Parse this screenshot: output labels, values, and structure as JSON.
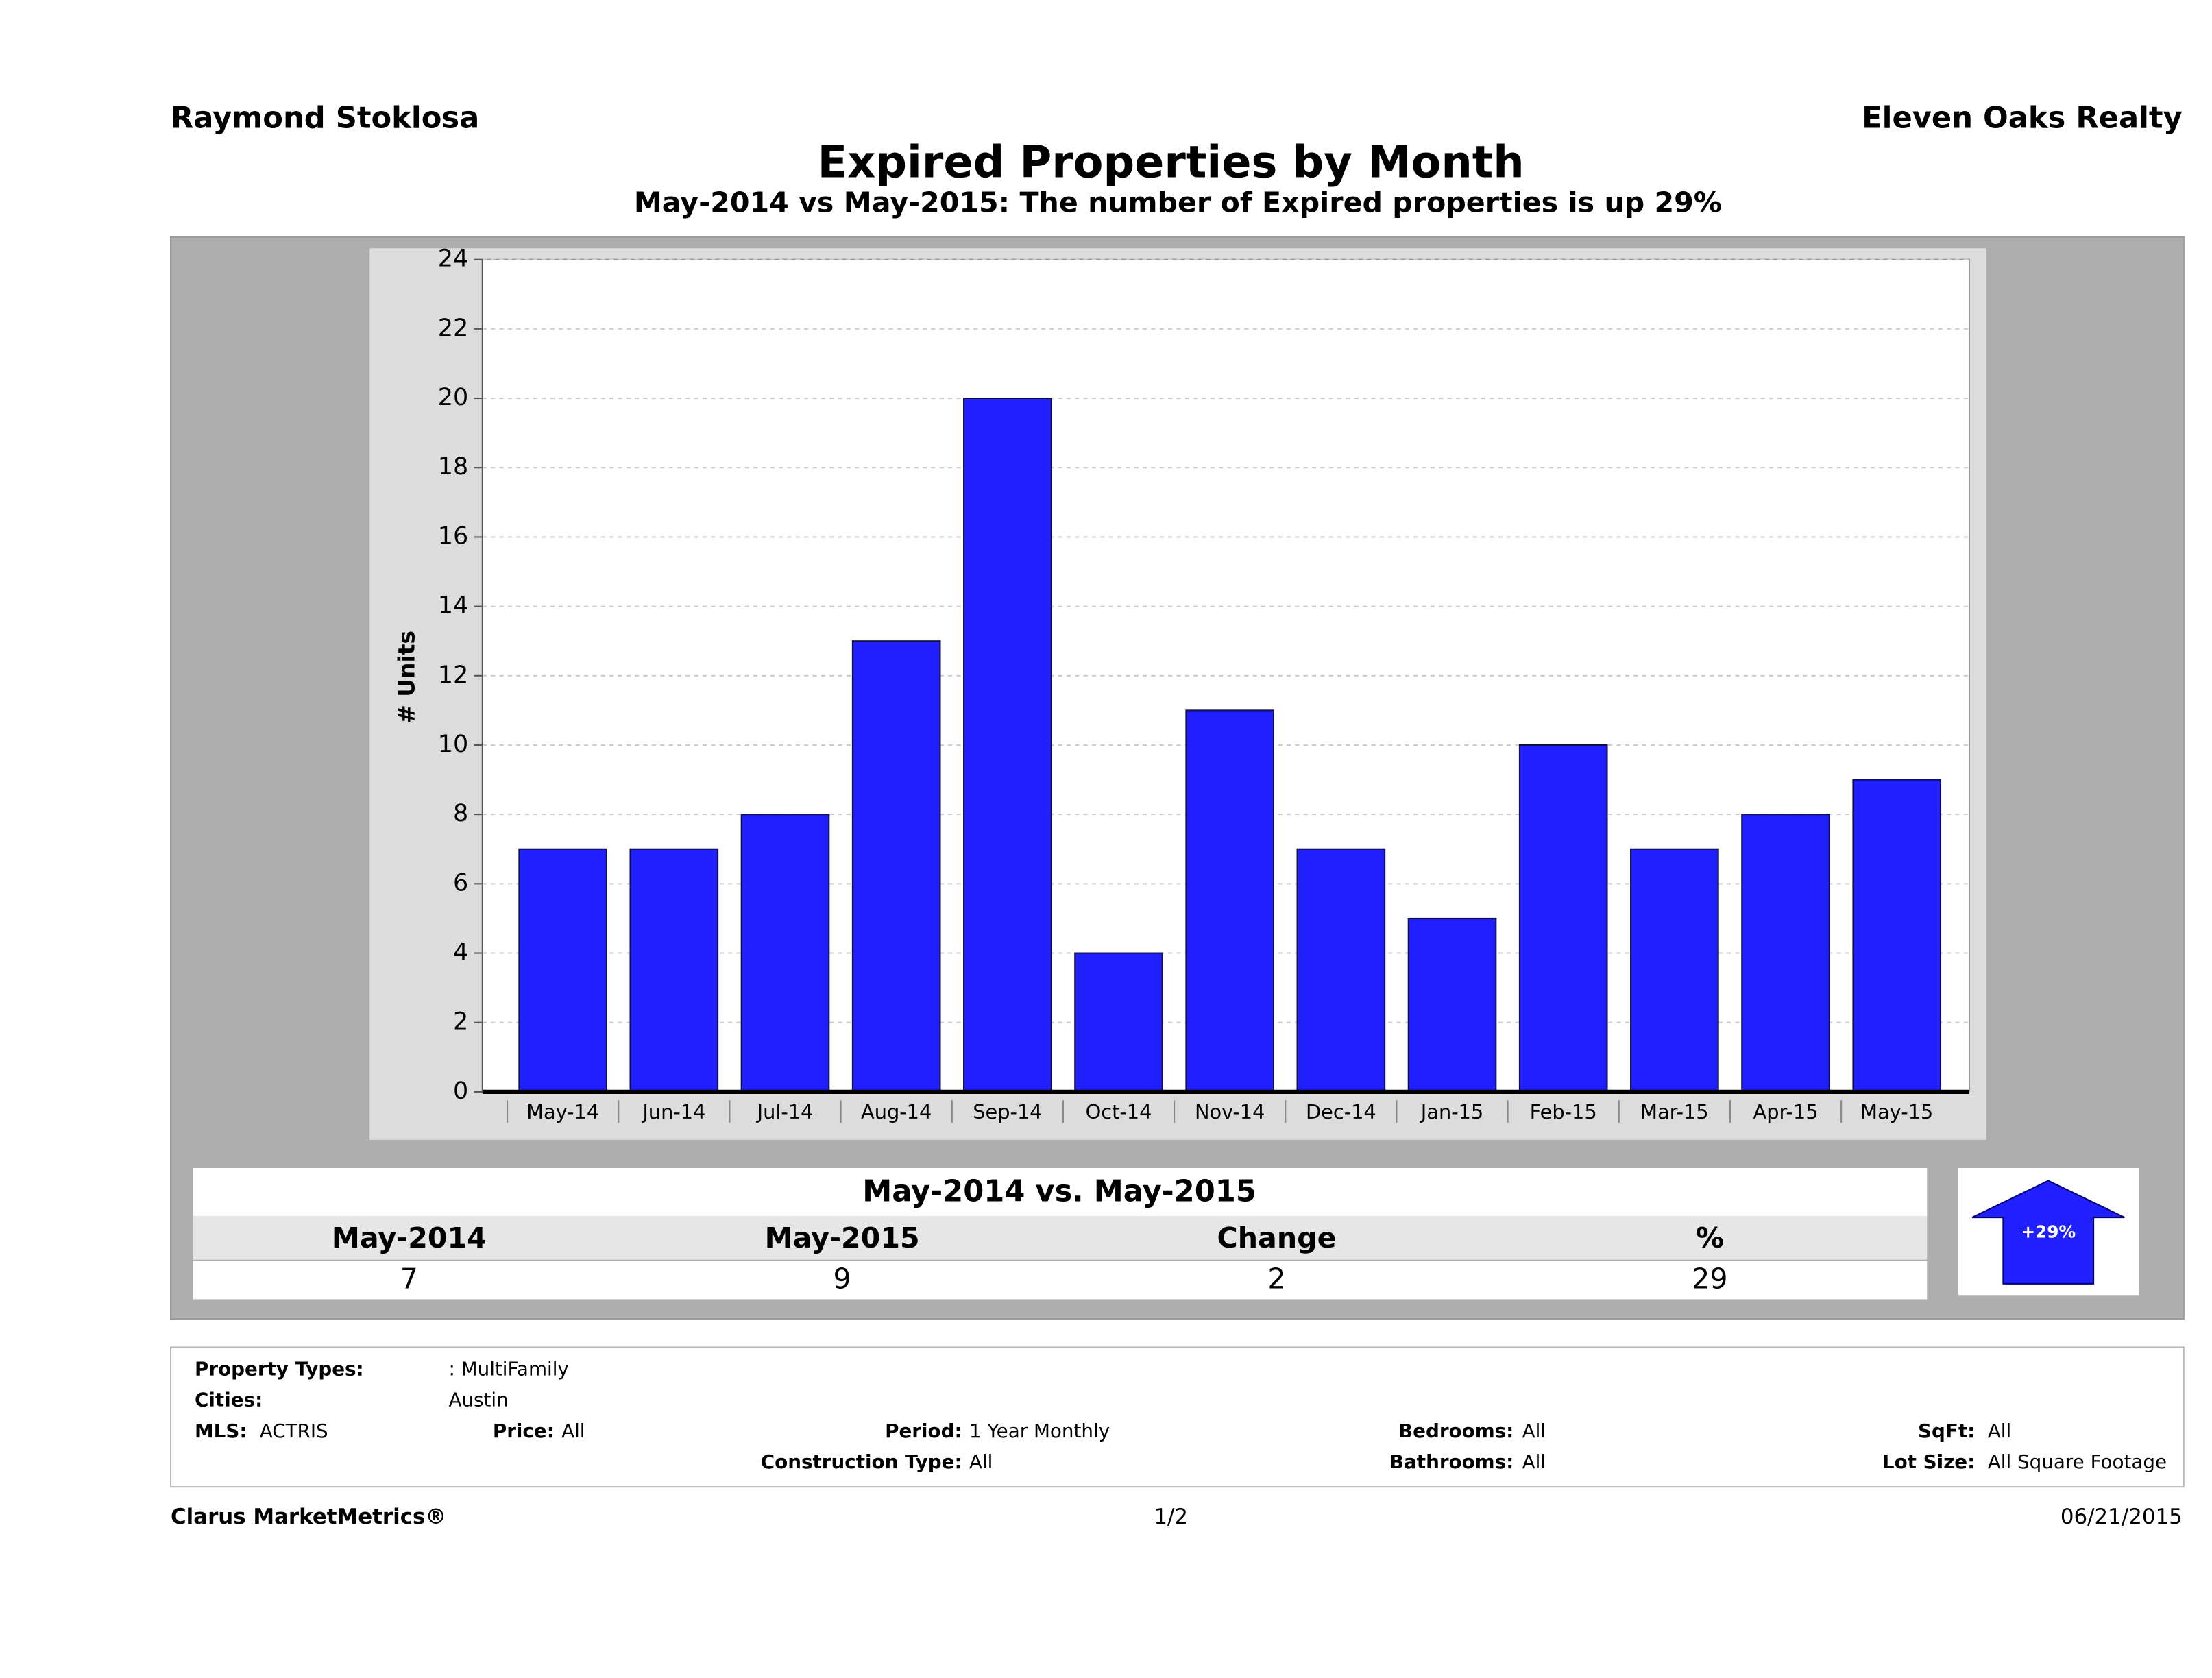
{
  "header": {
    "left": "Raymond Stoklosa",
    "right": "Eleven Oaks Realty"
  },
  "chart_data": {
    "type": "bar",
    "title": "Expired Properties by Month",
    "subtitle": "May-2014 vs May-2015: The number of Expired  properties is up 29%",
    "y_label": "# Units",
    "categories": [
      "May-14",
      "Jun-14",
      "Jul-14",
      "Aug-14",
      "Sep-14",
      "Oct-14",
      "Nov-14",
      "Dec-14",
      "Jan-15",
      "Feb-15",
      "Mar-15",
      "Apr-15",
      "May-15"
    ],
    "values": [
      7,
      7,
      8,
      13,
      20,
      4,
      11,
      7,
      5,
      10,
      7,
      8,
      9
    ],
    "color": "#2020ff",
    "ylim": [
      0,
      24
    ],
    "yticks": [
      0,
      2,
      4,
      6,
      8,
      10,
      12,
      14,
      16,
      18,
      20,
      22,
      24
    ],
    "grid": true
  },
  "comparison": {
    "title": "May-2014 vs. May-2015",
    "headers": [
      "May-2014",
      "May-2015",
      "Change",
      "%"
    ],
    "values": [
      7,
      9,
      2,
      29
    ],
    "badge": "+29%"
  },
  "details": [
    {
      "label": "Property Types:",
      "value": ": MultiFamily"
    },
    {
      "label": "Cities:",
      "value": "Austin"
    },
    {
      "label": "MLS:",
      "value": "ACTRIS"
    },
    {
      "label": "Price:",
      "value": "All"
    },
    {
      "label": "Period:",
      "value": "1 Year Monthly"
    },
    {
      "label": "Bedrooms:",
      "value": "All"
    },
    {
      "label": "SqFt:",
      "value": "All"
    },
    {
      "label": "Construction Type:",
      "value": "All"
    },
    {
      "label": "Bathrooms:",
      "value": "All"
    },
    {
      "label": "Lot Size:",
      "value": "All Square Footage"
    }
  ],
  "footer": {
    "left": "Clarus MarketMetrics®",
    "page": "1/2",
    "date": "06/21/2015"
  }
}
